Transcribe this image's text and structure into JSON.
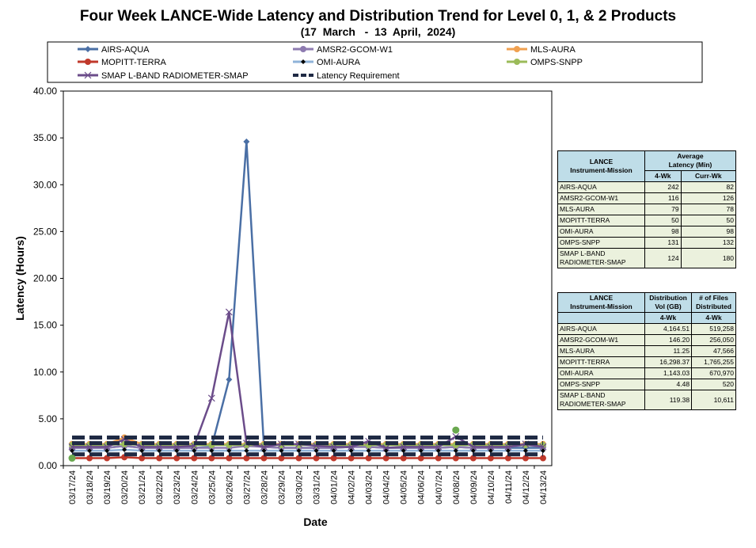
{
  "chart_data": {
    "type": "line",
    "title": "Four Week LANCE-Wide Latency and Distribution Trend for Level 0, 1, & 2 Products",
    "subtitle": "(17  March   -  13  April,  2024)",
    "xlabel": "Date",
    "ylabel": "Latency (Hours)",
    "ylim": [
      0,
      40
    ],
    "yticks": [
      "0.00",
      "5.00",
      "10.00",
      "15.00",
      "20.00",
      "25.00",
      "30.00",
      "35.00",
      "40.00"
    ],
    "grid": false,
    "legend_position": "top",
    "categories": [
      "03/17/24",
      "03/18/24",
      "03/19/24",
      "03/20/24",
      "03/21/24",
      "03/22/24",
      "03/23/24",
      "03/24/24",
      "03/25/24",
      "03/26/24",
      "03/27/24",
      "03/28/24",
      "03/29/24",
      "03/30/24",
      "03/31/24",
      "04/01/24",
      "04/02/24",
      "04/03/24",
      "04/04/24",
      "04/05/24",
      "04/06/24",
      "04/07/24",
      "04/08/24",
      "04/09/24",
      "04/10/24",
      "04/11/24",
      "04/12/24",
      "04/13/24"
    ],
    "series": [
      {
        "name": "AIRS-AQUA",
        "color": "#4a6fa5",
        "marker": "diamond",
        "values": [
          1.9,
          1.9,
          1.9,
          2.1,
          1.9,
          1.9,
          1.9,
          1.9,
          2.0,
          9.2,
          34.6,
          2.0,
          1.9,
          1.9,
          1.9,
          1.9,
          2.0,
          2.0,
          1.9,
          1.9,
          1.9,
          1.9,
          2.0,
          1.9,
          1.9,
          1.9,
          1.9,
          1.9
        ]
      },
      {
        "name": "AMSR2-GCOM-W1",
        "color": "#8e7bb0",
        "marker": "circle",
        "values": [
          1.9,
          1.9,
          1.9,
          2.1,
          1.9,
          1.9,
          1.9,
          1.9,
          1.9,
          1.9,
          2.1,
          2.0,
          1.9,
          1.9,
          1.9,
          1.9,
          2.0,
          2.0,
          1.9,
          1.9,
          1.9,
          1.9,
          2.0,
          1.9,
          1.9,
          2.0,
          2.2,
          2.0
        ]
      },
      {
        "name": "MLS-AURA",
        "color": "#f0a050",
        "marker": "circle",
        "values": [
          2.3,
          2.3,
          2.3,
          3.0,
          2.3,
          2.3,
          2.3,
          2.3,
          2.3,
          2.3,
          2.3,
          2.3,
          2.3,
          2.3,
          2.3,
          2.3,
          2.3,
          2.3,
          2.3,
          2.3,
          2.3,
          2.3,
          2.3,
          2.3,
          2.3,
          2.3,
          2.3,
          2.3
        ]
      },
      {
        "name": "MOPITT-TERRA",
        "color": "#c0392b",
        "marker": "circle",
        "values": [
          0.8,
          0.8,
          0.8,
          0.9,
          0.8,
          0.8,
          0.8,
          0.8,
          0.8,
          0.8,
          0.8,
          0.8,
          0.8,
          0.8,
          0.8,
          0.8,
          0.8,
          0.8,
          0.8,
          0.8,
          0.8,
          0.8,
          0.8,
          0.8,
          0.8,
          0.8,
          0.8,
          0.8
        ]
      },
      {
        "name": "OMI-AURA",
        "color": "#8fb3d9",
        "marker": "small-diamond",
        "values": [
          1.6,
          1.6,
          1.6,
          1.7,
          1.6,
          1.6,
          1.6,
          1.6,
          1.6,
          1.6,
          1.6,
          1.6,
          1.6,
          1.6,
          1.6,
          1.6,
          1.6,
          1.6,
          1.6,
          1.6,
          1.6,
          1.6,
          1.6,
          1.6,
          1.6,
          1.6,
          1.6,
          1.6
        ]
      },
      {
        "name": "OMPS-SNPP",
        "color": "#9bbb59",
        "marker": "circle",
        "values": [
          2.2,
          2.2,
          2.2,
          2.3,
          2.2,
          2.2,
          2.2,
          2.2,
          2.2,
          2.2,
          2.2,
          2.2,
          2.2,
          2.2,
          2.2,
          2.2,
          2.2,
          2.2,
          2.2,
          2.2,
          2.2,
          2.2,
          2.2,
          2.2,
          2.2,
          2.2,
          2.2,
          2.2
        ]
      },
      {
        "name": "SMAP L-BAND RADIOMETER-SMAP",
        "color": "#6b4c8a",
        "marker": "x",
        "values": [
          2.0,
          2.0,
          2.0,
          2.8,
          2.0,
          2.0,
          2.0,
          2.1,
          7.2,
          16.4,
          2.4,
          2.0,
          2.3,
          2.3,
          2.1,
          2.0,
          2.0,
          2.6,
          1.9,
          2.0,
          2.0,
          2.0,
          3.1,
          2.0,
          2.0,
          2.0,
          2.3,
          2.0
        ]
      },
      {
        "name": "Latency Requirement",
        "color": "#1f2a44",
        "marker": "none",
        "dashed": true,
        "values": [
          3,
          3,
          3,
          3,
          3,
          3,
          3,
          3,
          3,
          3,
          3,
          3,
          3,
          3,
          3,
          3,
          3,
          3,
          3,
          3,
          3,
          3,
          3,
          3,
          3,
          3,
          3,
          3
        ]
      },
      {
        "name": "",
        "color": "#1f2a44",
        "marker": "none",
        "dashed": true,
        "values": [
          2.4,
          2.4,
          2.4,
          2.4,
          2.4,
          2.4,
          2.4,
          2.4,
          2.4,
          2.4,
          2.4,
          2.4,
          2.4,
          2.4,
          2.4,
          2.4,
          2.4,
          2.4,
          2.4,
          2.4,
          2.4,
          2.4,
          2.4,
          2.4,
          2.4,
          2.4,
          2.4,
          2.4
        ]
      },
      {
        "name": "",
        "color": "#1f2a44",
        "marker": "none",
        "dashed": true,
        "values": [
          1.2,
          1.2,
          1.2,
          1.2,
          1.2,
          1.2,
          1.2,
          1.2,
          1.2,
          1.2,
          1.2,
          1.2,
          1.2,
          1.2,
          1.2,
          1.2,
          1.2,
          1.2,
          1.2,
          1.2,
          1.2,
          1.2,
          1.2,
          1.2,
          1.2,
          1.2,
          1.2,
          1.2
        ]
      }
    ],
    "extra_markers": [
      {
        "series": "OMPS-SNPP",
        "x": "04/08/24",
        "y": 3.8,
        "color": "#6aa84f"
      },
      {
        "series": "MOPITT-TERRA",
        "x": "03/17/24",
        "y": 0.8,
        "color": "#6aa84f"
      }
    ]
  },
  "latency_table": {
    "header_instrument": "LANCE\nInstrument-Mission",
    "header_group": "Average\nLatency (Min)",
    "header_4wk": "4-Wk",
    "header_curr": "Curr-Wk",
    "rows": [
      {
        "name": "AIRS-AQUA",
        "wk4": "242",
        "curr": "82"
      },
      {
        "name": "AMSR2-GCOM-W1",
        "wk4": "116",
        "curr": "126"
      },
      {
        "name": "MLS-AURA",
        "wk4": "79",
        "curr": "78"
      },
      {
        "name": "MOPITT-TERRA",
        "wk4": "50",
        "curr": "50"
      },
      {
        "name": "OMI-AURA",
        "wk4": "98",
        "curr": "98"
      },
      {
        "name": "OMPS-SNPP",
        "wk4": "131",
        "curr": "132"
      },
      {
        "name": "SMAP L-BAND\nRADIOMETER-SMAP",
        "wk4": "124",
        "curr": "180"
      }
    ]
  },
  "distribution_table": {
    "header_instrument": "LANCE\nInstrument-Mission",
    "header_vol": "Distribution\nVol (GB)",
    "header_files": "# of Files\nDistributed",
    "header_4wk_a": "4-Wk",
    "header_4wk_b": "4-Wk",
    "rows": [
      {
        "name": "AIRS-AQUA",
        "vol": "4,164.51",
        "files": "519,258"
      },
      {
        "name": "AMSR2-GCOM-W1",
        "vol": "146.20",
        "files": "256,050"
      },
      {
        "name": "MLS-AURA",
        "vol": "11.25",
        "files": "47,566"
      },
      {
        "name": "MOPITT-TERRA",
        "vol": "16,298.37",
        "files": "1,765,255"
      },
      {
        "name": "OMI-AURA",
        "vol": "1,143.03",
        "files": "670,970"
      },
      {
        "name": "OMPS-SNPP",
        "vol": "4.48",
        "files": "520"
      },
      {
        "name": "SMAP L-BAND\nRADIOMETER-SMAP",
        "vol": "119.38",
        "files": "10,611"
      }
    ]
  }
}
